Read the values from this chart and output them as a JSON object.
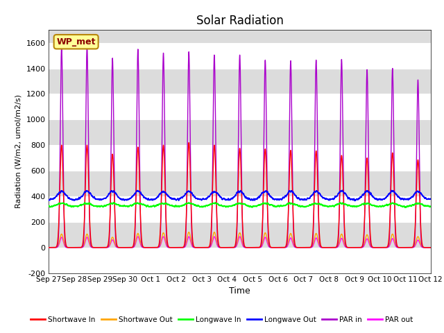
{
  "title": "Solar Radiation",
  "xlabel": "Time",
  "ylabel": "Radiation (W/m2, umol/m2/s)",
  "ylim": [
    -200,
    1700
  ],
  "yticks": [
    -200,
    0,
    200,
    400,
    600,
    800,
    1000,
    1200,
    1400,
    1600
  ],
  "n_days": 15,
  "n_points_per_day": 300,
  "station_label": "WP_met",
  "colors": {
    "shortwave_in": "#FF0000",
    "shortwave_out": "#FFA500",
    "longwave_in": "#00FF00",
    "longwave_out": "#0000FF",
    "par_in": "#AA00CC",
    "par_out": "#FF00FF"
  },
  "tick_labels": [
    "Sep 27",
    "Sep 28",
    "Sep 29",
    "Sep 30",
    "Oct 1",
    "Oct 2",
    "Oct 3",
    "Oct 4",
    "Oct 5",
    "Oct 6",
    "Oct 7",
    "Oct 8",
    "Oct 9",
    "Oct 10",
    "Oct 11",
    "Oct 12"
  ],
  "legend_entries": [
    {
      "label": "Shortwave In",
      "color": "#FF0000"
    },
    {
      "label": "Shortwave Out",
      "color": "#FFA500"
    },
    {
      "label": "Longwave In",
      "color": "#00FF00"
    },
    {
      "label": "Longwave Out",
      "color": "#0000FF"
    },
    {
      "label": "PAR in",
      "color": "#AA00CC"
    },
    {
      "label": "PAR out",
      "color": "#FF00FF"
    }
  ],
  "par_in_peaks": [
    1570,
    1570,
    1480,
    1550,
    1520,
    1530,
    1505,
    1505,
    1465,
    1460,
    1465,
    1470,
    1390,
    1400,
    1310
  ],
  "sw_in_peaks": [
    800,
    800,
    730,
    785,
    800,
    820,
    800,
    775,
    770,
    760,
    755,
    720,
    700,
    740,
    685
  ],
  "sw_out_peaks": [
    105,
    105,
    80,
    110,
    115,
    120,
    120,
    115,
    115,
    110,
    110,
    105,
    100,
    105,
    85
  ],
  "par_out_peaks": [
    80,
    80,
    60,
    85,
    85,
    85,
    85,
    85,
    80,
    75,
    75,
    72,
    68,
    70,
    58
  ],
  "lw_in_base": 320,
  "lw_out_base": 375,
  "band_colors": [
    "#FFFFFF",
    "#DCDCDC"
  ],
  "plot_bg_color": "#DCDCDC"
}
